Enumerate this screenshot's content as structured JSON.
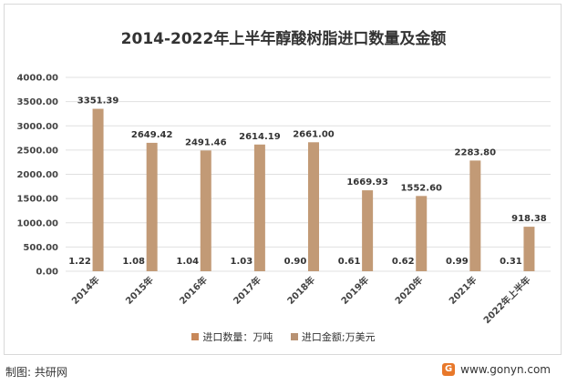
{
  "footer": {
    "source": "制图: 共研网",
    "website": "www.gonyn.com"
  },
  "colors": {
    "bar": "#c29a76",
    "grid": "#e0e0e0",
    "legend_qty": "#c8885a",
    "legend_amount": "#b89273",
    "logo": "#e8782a"
  },
  "chart_data": {
    "type": "bar",
    "title": "2014-2022年上半年醇酸树脂进口数量及金额",
    "categories": [
      "2014年",
      "2015年",
      "2016年",
      "2017年",
      "2018年",
      "2019年",
      "2020年",
      "2021年",
      "2022年上半年"
    ],
    "series": [
      {
        "name": "进口数量：万吨",
        "values": [
          1.22,
          1.08,
          1.04,
          1.03,
          0.9,
          0.61,
          0.62,
          0.99,
          0.31
        ]
      },
      {
        "name": "进口金额;万美元",
        "values": [
          3351.39,
          2649.42,
          2491.46,
          2614.19,
          2661.0,
          1669.93,
          1552.6,
          2283.8,
          918.38
        ]
      }
    ],
    "ylim": [
      0,
      4000
    ],
    "yticks": [
      "0.00",
      "500.00",
      "1000.00",
      "1500.00",
      "2000.00",
      "2500.00",
      "3000.00",
      "3500.00",
      "4000.00"
    ],
    "data_labels": {
      "qty": [
        "1.22",
        "1.08",
        "1.04",
        "1.03",
        "0.90",
        "0.61",
        "0.62",
        "0.99",
        "0.31"
      ],
      "amount": [
        "3351.39",
        "2649.42",
        "2491.46",
        "2614.19",
        "2661.00",
        "1669.93",
        "1552.60",
        "2283.80",
        "918.38"
      ]
    },
    "legend_position": "bottom",
    "grid": true
  }
}
